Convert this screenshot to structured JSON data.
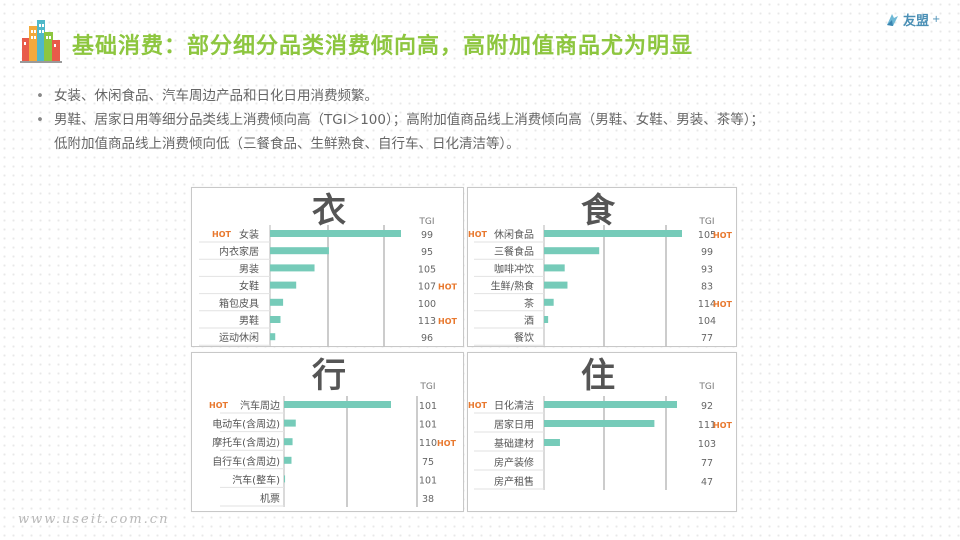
{
  "header": {
    "title": "基础消费：部分细分品类消费倾向高，高附加值商品尤为明显",
    "brand_name": "友盟",
    "brand_plus": "+"
  },
  "bullets": [
    {
      "line1": "女装、休闲食品、汽车周边产品和日化日用消费频繁。",
      "line2": ""
    },
    {
      "line1": "男鞋、居家日用等细分品类线上消费倾向高（TGI＞100）；高附加值商品线上消费倾向高（男鞋、女鞋、男装、茶等）；",
      "line2": "低附加值商品线上消费倾向低（三餐食品、生鲜熟食、自行车、日化清洁等）。"
    }
  ],
  "watermark": "www.useit.com.cn",
  "colors": {
    "bar": "#76cbb9",
    "hot": "#e8782e",
    "title": "#8dc63f",
    "brand": "#4a8fb5"
  },
  "chart_data": [
    {
      "type": "bar",
      "title": "衣",
      "value_header": "TGI",
      "hot_label": "HOT",
      "categories": [
        "女装",
        "内衣家居",
        "男装",
        "女鞋",
        "箱包皮具",
        "男鞋",
        "运动休闲"
      ],
      "tgi": [
        99,
        95,
        105,
        107,
        100,
        113,
        96
      ],
      "hot_left": [
        true,
        false,
        false,
        false,
        false,
        false,
        false
      ],
      "hot_right": [
        false,
        false,
        false,
        true,
        false,
        true,
        false
      ],
      "values": [
        100,
        45,
        34,
        20,
        10,
        8,
        4
      ]
    },
    {
      "type": "bar",
      "title": "食",
      "value_header": "TGI",
      "hot_label": "HOT",
      "categories": [
        "休闲食品",
        "三餐食品",
        "咖啡冲饮",
        "生鲜/熟食",
        "茶",
        "酒",
        "餐饮"
      ],
      "tgi": [
        105,
        99,
        93,
        83,
        114,
        104,
        77
      ],
      "hot_left": [
        true,
        false,
        false,
        false,
        false,
        false,
        false
      ],
      "hot_right": [
        true,
        false,
        false,
        false,
        true,
        false,
        false
      ],
      "values": [
        100,
        40,
        15,
        17,
        7,
        3,
        0
      ]
    },
    {
      "type": "bar",
      "title": "行",
      "value_header": "TGI",
      "hot_label": "HOT",
      "categories": [
        "汽车周边",
        "电动车(含周边)",
        "摩托车(含周边)",
        "自行车(含周边)",
        "汽车(整车)",
        "机票"
      ],
      "tgi": [
        101,
        101,
        110,
        75,
        101,
        38
      ],
      "hot_left": [
        true,
        false,
        false,
        false,
        false,
        false
      ],
      "hot_right": [
        false,
        false,
        true,
        false,
        false,
        false
      ],
      "values": [
        100,
        11,
        8,
        7,
        1,
        0
      ]
    },
    {
      "type": "bar",
      "title": "住",
      "value_header": "TGI",
      "hot_label": "HOT",
      "categories": [
        "日化清洁",
        "居家日用",
        "基础建材",
        "房产装修",
        "房产租售"
      ],
      "tgi": [
        92,
        111,
        103,
        77,
        47
      ],
      "hot_left": [
        true,
        false,
        false,
        false,
        false
      ],
      "hot_right": [
        false,
        true,
        false,
        false,
        false
      ],
      "values": [
        100,
        83,
        12,
        0,
        0
      ]
    }
  ]
}
